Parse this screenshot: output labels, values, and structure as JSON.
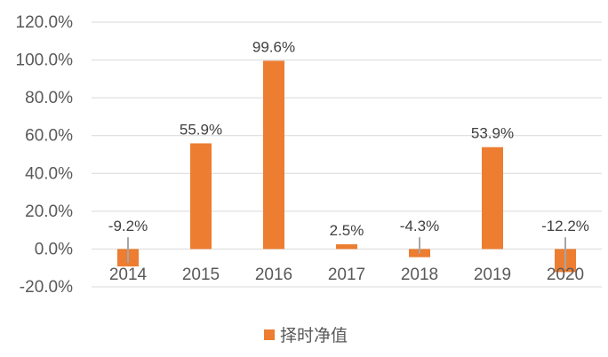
{
  "chart_data": {
    "type": "bar",
    "categories": [
      "2014",
      "2015",
      "2016",
      "2017",
      "2018",
      "2019",
      "2020"
    ],
    "series": [
      {
        "name": "择时净值",
        "values": [
          -9.2,
          55.9,
          99.6,
          2.5,
          -4.3,
          53.9,
          -12.2
        ],
        "labels": [
          "-9.2%",
          "55.9%",
          "99.6%",
          "2.5%",
          "-4.3%",
          "53.9%",
          "-12.2%"
        ],
        "color": "#ED7D31"
      }
    ],
    "ylim": [
      -20,
      120
    ],
    "yticks": [
      -20,
      0,
      20,
      40,
      60,
      80,
      100,
      120
    ],
    "ytick_labels": [
      "-20.0%",
      "0.0%",
      "20.0%",
      "40.0%",
      "60.0%",
      "80.0%",
      "100.0%",
      "120.0%"
    ],
    "grid": true,
    "legend_position": "bottom",
    "grid_color": "#D9D9D9",
    "leader_color": "#A6A6A6"
  }
}
